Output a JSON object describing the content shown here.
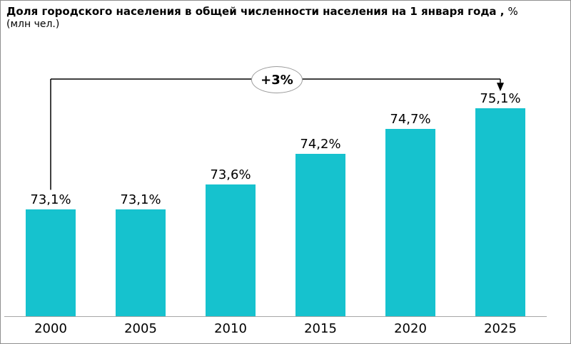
{
  "header": {
    "title_bold": "Доля городского населения в общей численности населения на 1 января года ,",
    "title_suffix": "%",
    "subtitle": "(млн чел.)"
  },
  "chart_data": {
    "type": "bar",
    "title": "Доля городского населения в общей численности населения на 1 января года, %",
    "subtitle": "(млн чел.)",
    "categories": [
      "2000",
      "2005",
      "2010",
      "2015",
      "2020",
      "2025"
    ],
    "values": [
      73.1,
      73.1,
      73.6,
      74.2,
      74.7,
      75.1
    ],
    "value_labels": [
      "73,1%",
      "73,1%",
      "73,6%",
      "74,2%",
      "74,7%",
      "75,1%"
    ],
    "xlabel": "",
    "ylabel": "",
    "ylim": [
      71,
      76
    ],
    "grid": false,
    "legend": false,
    "bar_color": "#16C2CE",
    "axis_line_color": "#A6A6A6",
    "annotation": {
      "label": "+3%",
      "from_category": "2000",
      "to_category": "2025",
      "arrow_color": "#000000"
    }
  }
}
